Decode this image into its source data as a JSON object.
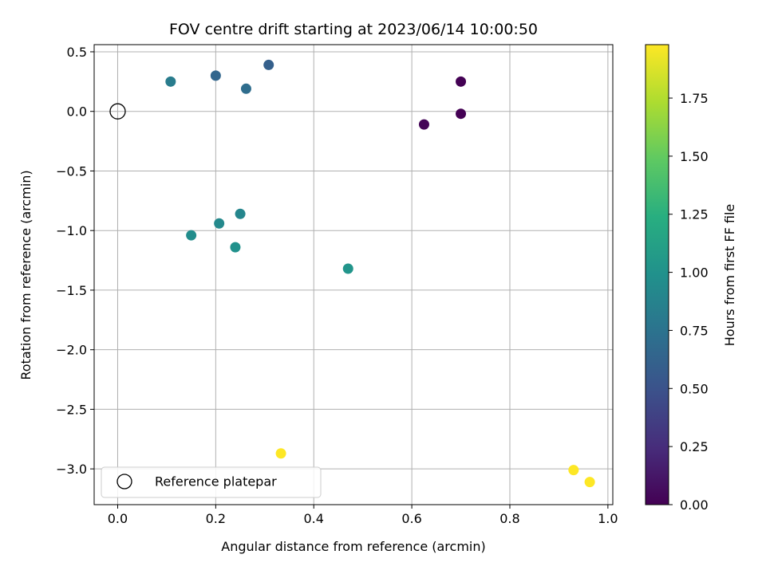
{
  "chart_data": {
    "type": "scatter",
    "title": "FOV centre drift starting at 2023/06/14 10:00:50",
    "xlabel": "Angular distance from reference (arcmin)",
    "ylabel": "Rotation from reference (arcmin)",
    "xlim": [
      -0.048,
      1.01
    ],
    "ylim": [
      -3.3,
      0.56
    ],
    "xticks": [
      0.0,
      0.2,
      0.4,
      0.6,
      0.8,
      1.0
    ],
    "xtick_labels": [
      "0.0",
      "0.2",
      "0.4",
      "0.6",
      "0.8",
      "1.0"
    ],
    "yticks": [
      0.5,
      0.0,
      -0.5,
      -1.0,
      -1.5,
      -2.0,
      -2.5,
      -3.0
    ],
    "ytick_labels": [
      "0.5",
      "0.0",
      "−0.5",
      "−1.0",
      "−1.5",
      "−2.0",
      "−2.5",
      "−3.0"
    ],
    "grid": true,
    "legend": {
      "position": "lower-left",
      "entries": [
        "Reference platepar"
      ]
    },
    "reference_point": {
      "x": 0.0,
      "y": 0.0,
      "label": "Reference platepar"
    },
    "colorbar": {
      "label": "Hours from first FF file",
      "colormap": "viridis",
      "range": [
        0.0,
        1.98
      ],
      "ticks": [
        0.0,
        0.25,
        0.5,
        0.75,
        1.0,
        1.25,
        1.5,
        1.75
      ],
      "tick_labels": [
        "0.00",
        "0.25",
        "0.50",
        "0.75",
        "1.00",
        "1.25",
        "1.50",
        "1.75"
      ]
    },
    "points": [
      {
        "x": 0.7,
        "y": 0.25,
        "hours": 0.0
      },
      {
        "x": 0.7,
        "y": -0.02,
        "hours": 0.0
      },
      {
        "x": 0.625,
        "y": -0.11,
        "hours": 0.02
      },
      {
        "x": 0.308,
        "y": 0.39,
        "hours": 0.6
      },
      {
        "x": 0.2,
        "y": 0.3,
        "hours": 0.65
      },
      {
        "x": 0.262,
        "y": 0.19,
        "hours": 0.7
      },
      {
        "x": 0.108,
        "y": 0.25,
        "hours": 0.82
      },
      {
        "x": 0.25,
        "y": -0.86,
        "hours": 0.9
      },
      {
        "x": 0.207,
        "y": -0.94,
        "hours": 0.93
      },
      {
        "x": 0.15,
        "y": -1.04,
        "hours": 0.96
      },
      {
        "x": 0.24,
        "y": -1.14,
        "hours": 0.99
      },
      {
        "x": 0.47,
        "y": -1.32,
        "hours": 1.02
      },
      {
        "x": 0.333,
        "y": -2.87,
        "hours": 1.98
      },
      {
        "x": 0.93,
        "y": -3.01,
        "hours": 1.98
      },
      {
        "x": 0.963,
        "y": -3.11,
        "hours": 1.98
      }
    ]
  }
}
